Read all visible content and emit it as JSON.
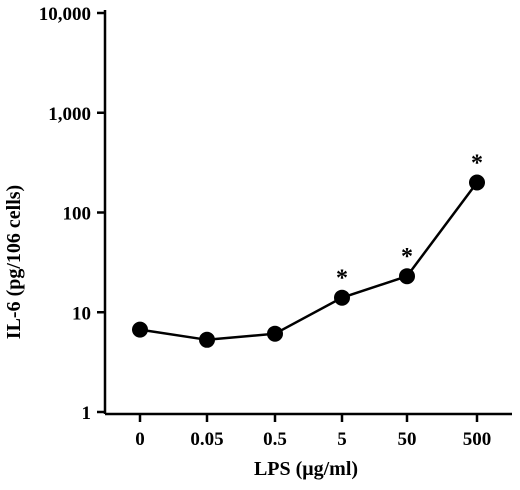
{
  "chart_data": {
    "type": "line",
    "yscale": "log",
    "ylim": [
      1,
      10000
    ],
    "categories": [
      "0",
      "0.05",
      "0.5",
      "5",
      "50",
      "500"
    ],
    "series": [
      {
        "values": [
          6.7,
          5.3,
          6.1,
          14,
          23,
          200
        ]
      }
    ],
    "significance": [
      "",
      "",
      "",
      "*",
      "*",
      "*"
    ],
    "yticks": [
      {
        "value": 1,
        "label": "1"
      },
      {
        "value": 10,
        "label": "10"
      },
      {
        "value": 100,
        "label": "100"
      },
      {
        "value": 1000,
        "label": "1,000"
      },
      {
        "value": 10000,
        "label": "10,000"
      }
    ],
    "ylabel": "IL-6 (pg/106 cells)",
    "xlabel": "LPS (μg/ml)",
    "colors": {
      "line": "#000000",
      "marker": "#000000"
    }
  }
}
